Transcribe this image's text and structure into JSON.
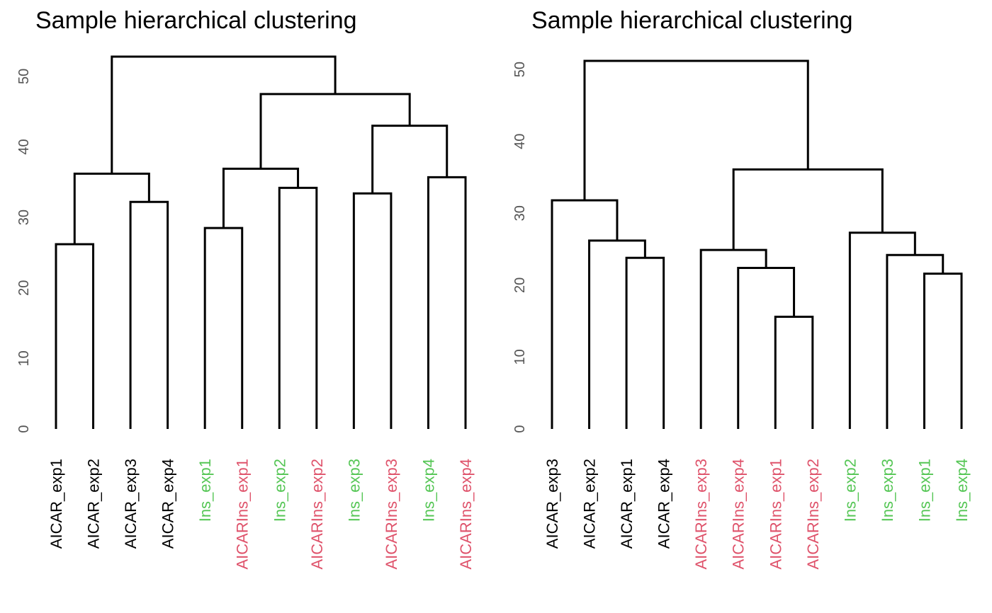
{
  "colors": {
    "AICAR": "#000000",
    "Ins": "#55c655",
    "AICARIns": "#df536b",
    "links": "#000000",
    "axis_text": "#555555"
  },
  "chart_data": [
    {
      "type": "dendrogram",
      "title": "Sample hierarchical clustering",
      "ylim": [
        0,
        52
      ],
      "yticks": [
        0,
        10,
        20,
        30,
        40,
        50
      ],
      "leaves": [
        {
          "label": "AICAR_exp1",
          "group": "AICAR"
        },
        {
          "label": "AICAR_exp2",
          "group": "AICAR"
        },
        {
          "label": "AICAR_exp3",
          "group": "AICAR"
        },
        {
          "label": "AICAR_exp4",
          "group": "AICAR"
        },
        {
          "label": "Ins_exp1",
          "group": "Ins"
        },
        {
          "label": "AICARIns_exp1",
          "group": "AICARIns"
        },
        {
          "label": "Ins_exp2",
          "group": "Ins"
        },
        {
          "label": "AICARIns_exp2",
          "group": "AICARIns"
        },
        {
          "label": "Ins_exp3",
          "group": "Ins"
        },
        {
          "label": "AICARIns_exp3",
          "group": "AICARIns"
        },
        {
          "label": "Ins_exp4",
          "group": "Ins"
        },
        {
          "label": "AICARIns_exp4",
          "group": "AICARIns"
        }
      ],
      "merges": [
        {
          "left": 0,
          "right": 1,
          "height": 26.2
        },
        {
          "left": 2,
          "right": 3,
          "height": 32.2
        },
        {
          "left": "m0",
          "right": "m1",
          "height": 36.2
        },
        {
          "left": 4,
          "right": 5,
          "height": 28.5
        },
        {
          "left": 6,
          "right": 7,
          "height": 34.2
        },
        {
          "left": "m3",
          "right": "m4",
          "height": 36.9
        },
        {
          "left": 8,
          "right": 9,
          "height": 33.4
        },
        {
          "left": 10,
          "right": 11,
          "height": 35.7
        },
        {
          "left": "m6",
          "right": "m7",
          "height": 43.0
        },
        {
          "left": "m5",
          "right": "m8",
          "height": 47.5
        },
        {
          "left": "m2",
          "right": "m9",
          "height": 52.8
        }
      ]
    },
    {
      "type": "dendrogram",
      "title": "Sample hierarchical clustering",
      "ylim": [
        0,
        51
      ],
      "yticks": [
        0,
        10,
        20,
        30,
        40,
        50
      ],
      "leaves": [
        {
          "label": "AICAR_exp3",
          "group": "AICAR"
        },
        {
          "label": "AICAR_exp2",
          "group": "AICAR"
        },
        {
          "label": "AICAR_exp1",
          "group": "AICAR"
        },
        {
          "label": "AICAR_exp4",
          "group": "AICAR"
        },
        {
          "label": "AICARIns_exp3",
          "group": "AICARIns"
        },
        {
          "label": "AICARIns_exp4",
          "group": "AICARIns"
        },
        {
          "label": "AICARIns_exp1",
          "group": "AICARIns"
        },
        {
          "label": "AICARIns_exp2",
          "group": "AICARIns"
        },
        {
          "label": "Ins_exp2",
          "group": "Ins"
        },
        {
          "label": "Ins_exp3",
          "group": "Ins"
        },
        {
          "label": "Ins_exp1",
          "group": "Ins"
        },
        {
          "label": "Ins_exp4",
          "group": "Ins"
        }
      ],
      "merges": [
        {
          "left": 2,
          "right": 3,
          "height": 23.8
        },
        {
          "left": 1,
          "right": "m0",
          "height": 26.2
        },
        {
          "left": 0,
          "right": "m1",
          "height": 31.8
        },
        {
          "left": 6,
          "right": 7,
          "height": 15.6
        },
        {
          "left": 5,
          "right": "m3",
          "height": 22.4
        },
        {
          "left": 4,
          "right": "m4",
          "height": 24.9
        },
        {
          "left": 10,
          "right": 11,
          "height": 21.6
        },
        {
          "left": 9,
          "right": "m6",
          "height": 24.2
        },
        {
          "left": 8,
          "right": "m7",
          "height": 27.3
        },
        {
          "left": "m5",
          "right": "m8",
          "height": 36.1
        },
        {
          "left": "m2",
          "right": "m9",
          "height": 51.2
        }
      ]
    }
  ]
}
